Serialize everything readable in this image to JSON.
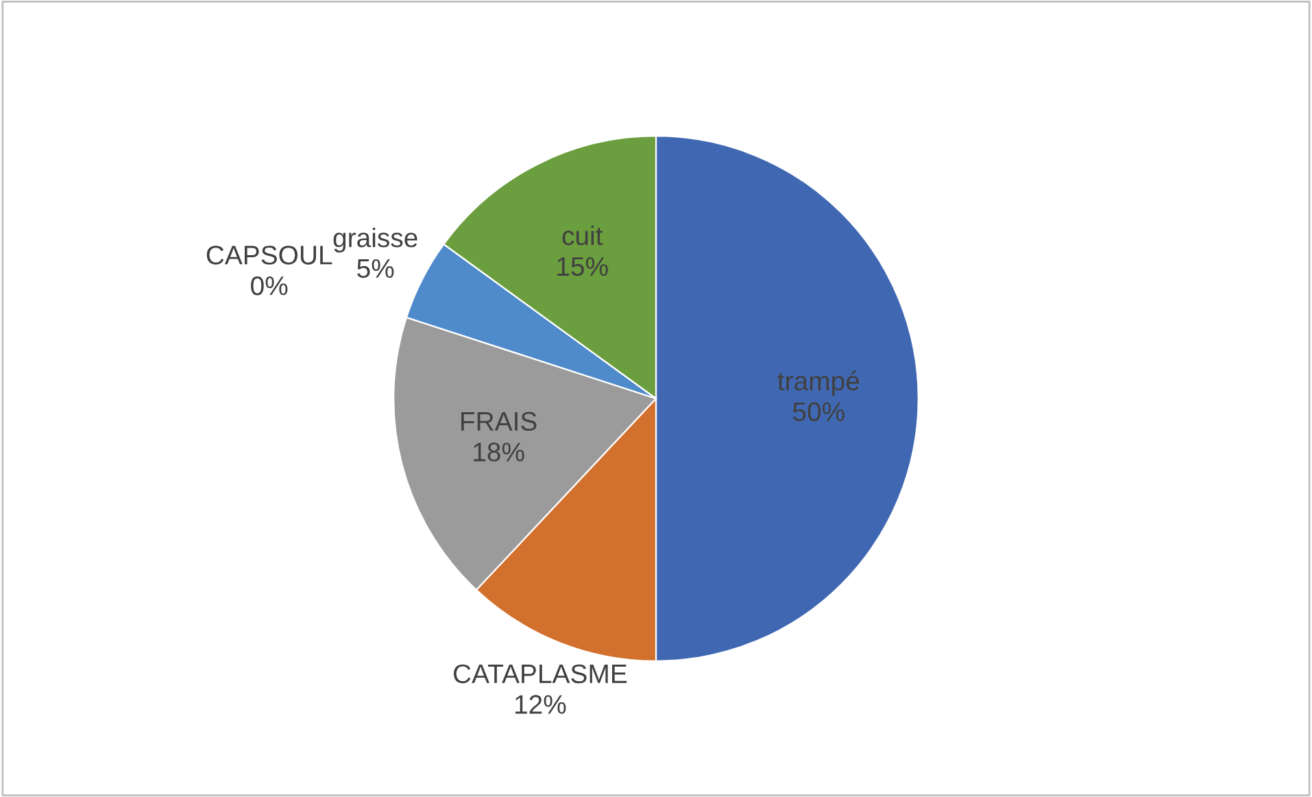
{
  "chart_data": {
    "type": "pie",
    "categories": [
      "trampé",
      "CATAPLASME",
      "FRAIS",
      "CAPSOUL",
      "graisse",
      "cuit"
    ],
    "values": [
      50,
      12,
      18,
      0,
      5,
      15
    ],
    "value_labels": [
      "50%",
      "12%",
      "18%",
      "0%",
      "5%",
      "15%"
    ],
    "colors": [
      "#4068b2",
      "#d2702e",
      "#9b9b9b",
      "#f2b705",
      "#4f8acb",
      "#6b9e3e"
    ]
  }
}
